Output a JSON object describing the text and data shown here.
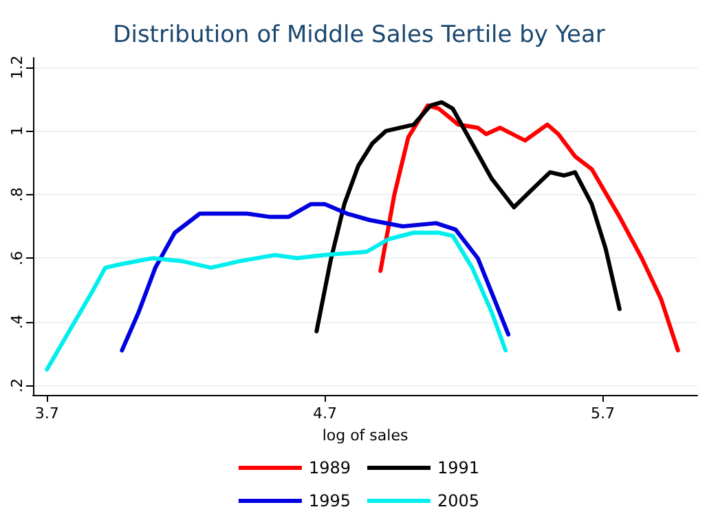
{
  "chart_data": {
    "type": "line",
    "title": "Distribution of Middle Sales Tertile by Year",
    "xlabel": "log of sales",
    "xlim": [
      3.65,
      6.04
    ],
    "xticks": [
      3.7,
      4.7,
      5.7
    ],
    "ylim": [
      0.17,
      1.23
    ],
    "yticks": [
      {
        "value": 0.2,
        "label": ".2"
      },
      {
        "value": 0.4,
        "label": ".4"
      },
      {
        "value": 0.6,
        "label": ".6"
      },
      {
        "value": 0.8,
        "label": ".8"
      },
      1,
      1.2
    ],
    "grid": "y",
    "legend": "bottom",
    "marker": "none",
    "line_style": "solid",
    "series": [
      {
        "name": "1989",
        "color": "#ff0000",
        "x": [
          4.9,
          4.95,
          5.0,
          5.07,
          5.11,
          5.18,
          5.25,
          5.28,
          5.33,
          5.42,
          5.5,
          5.54,
          5.6,
          5.66,
          5.76,
          5.84,
          5.91,
          5.97
        ],
        "values": [
          0.56,
          0.8,
          0.98,
          1.08,
          1.07,
          1.02,
          1.01,
          0.99,
          1.01,
          0.97,
          1.02,
          0.99,
          0.92,
          0.88,
          0.73,
          0.6,
          0.47,
          0.31
        ]
      },
      {
        "name": "1991",
        "color": "#000000",
        "x": [
          4.67,
          4.72,
          4.77,
          4.82,
          4.87,
          4.92,
          5.02,
          5.08,
          5.12,
          5.16,
          5.23,
          5.3,
          5.38,
          5.45,
          5.51,
          5.56,
          5.6,
          5.66,
          5.71,
          5.76
        ],
        "values": [
          0.37,
          0.59,
          0.77,
          0.89,
          0.96,
          1.0,
          1.02,
          1.08,
          1.09,
          1.07,
          0.96,
          0.85,
          0.76,
          0.82,
          0.87,
          0.86,
          0.87,
          0.77,
          0.63,
          0.44
        ]
      },
      {
        "name": "1995",
        "color": "#0000e0",
        "x": [
          3.97,
          4.03,
          4.09,
          4.16,
          4.25,
          4.31,
          4.42,
          4.5,
          4.57,
          4.65,
          4.7,
          4.78,
          4.86,
          4.98,
          5.1,
          5.17,
          5.25,
          5.31,
          5.36
        ],
        "values": [
          0.31,
          0.43,
          0.57,
          0.68,
          0.74,
          0.74,
          0.74,
          0.73,
          0.73,
          0.77,
          0.77,
          0.74,
          0.72,
          0.7,
          0.71,
          0.69,
          0.6,
          0.47,
          0.36
        ]
      },
      {
        "name": "2005",
        "color": "#00eeee",
        "x": [
          3.7,
          3.78,
          3.86,
          3.91,
          3.96,
          4.08,
          4.19,
          4.29,
          4.39,
          4.52,
          4.6,
          4.7,
          4.85,
          4.93,
          5.02,
          5.11,
          5.16,
          5.23,
          5.3,
          5.35
        ],
        "values": [
          0.25,
          0.37,
          0.49,
          0.57,
          0.58,
          0.6,
          0.59,
          0.57,
          0.59,
          0.61,
          0.6,
          0.61,
          0.62,
          0.66,
          0.68,
          0.68,
          0.67,
          0.57,
          0.43,
          0.31
        ]
      }
    ]
  }
}
